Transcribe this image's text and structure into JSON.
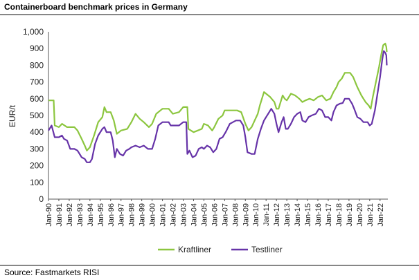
{
  "title": "Containerboard benchmark prices in Germany",
  "source": "Source: Fastmarkets RISI",
  "colors": {
    "kraftliner": "#8cc63f",
    "testliner": "#6633a8"
  },
  "chart_data": {
    "type": "line",
    "title": "Containerboard benchmark prices in Germany",
    "xlabel": "",
    "ylabel": "EUR/t",
    "ylim": [
      0,
      1000
    ],
    "yticks": [
      0,
      100,
      200,
      300,
      400,
      500,
      600,
      700,
      800,
      900,
      1000
    ],
    "ytick_labels": [
      "0",
      "100",
      "200",
      "300",
      "400",
      "500",
      "600",
      "700",
      "800",
      "900",
      "1,000"
    ],
    "xlim": [
      1990,
      2022.75
    ],
    "xtick_labels": [
      "Jan-90",
      "Jan-91",
      "Jan-92",
      "Jan-93",
      "Jan-94",
      "Jan-95",
      "Jan-96",
      "Jan-97",
      "Jan-98",
      "Jan-99",
      "Jan-00",
      "Jan-01",
      "Jan-02",
      "Jan-03",
      "Jan-04",
      "Jan-05",
      "Jan-06",
      "Jan-07",
      "Jan-08",
      "Jan-09",
      "Jan-10",
      "Jan-11",
      "Jan-12",
      "Jan-13",
      "Jan-14",
      "Jan-15",
      "Jan-16",
      "Jan-17",
      "Jan-18",
      "Jan-19",
      "Jan-20",
      "Jan-21",
      "Jan-22"
    ],
    "grid": false,
    "legend_position": "bottom-center",
    "series": [
      {
        "name": "Kraftliner",
        "points": [
          [
            1990,
            590
          ],
          [
            1990.5,
            590
          ],
          [
            1990.6,
            440
          ],
          [
            1991,
            430
          ],
          [
            1991.3,
            450
          ],
          [
            1991.8,
            430
          ],
          [
            1992.5,
            430
          ],
          [
            1992.8,
            410
          ],
          [
            1993.2,
            360
          ],
          [
            1993.5,
            320
          ],
          [
            1993.7,
            290
          ],
          [
            1994,
            310
          ],
          [
            1994.4,
            380
          ],
          [
            1994.8,
            460
          ],
          [
            1995.2,
            490
          ],
          [
            1995.4,
            550
          ],
          [
            1995.6,
            520
          ],
          [
            1996,
            520
          ],
          [
            1996.3,
            470
          ],
          [
            1996.6,
            390
          ],
          [
            1997,
            410
          ],
          [
            1997.6,
            420
          ],
          [
            1998,
            460
          ],
          [
            1998.4,
            510
          ],
          [
            1998.8,
            480
          ],
          [
            1999.2,
            460
          ],
          [
            1999.7,
            430
          ],
          [
            2000,
            450
          ],
          [
            2000.4,
            510
          ],
          [
            2001,
            540
          ],
          [
            2001.6,
            540
          ],
          [
            2002,
            510
          ],
          [
            2002.6,
            520
          ],
          [
            2003,
            550
          ],
          [
            2003.4,
            550
          ],
          [
            2003.5,
            420
          ],
          [
            2004,
            400
          ],
          [
            2004.4,
            410
          ],
          [
            2004.8,
            420
          ],
          [
            2005,
            450
          ],
          [
            2005.4,
            440
          ],
          [
            2005.8,
            410
          ],
          [
            2006,
            430
          ],
          [
            2006.4,
            480
          ],
          [
            2006.8,
            500
          ],
          [
            2007,
            530
          ],
          [
            2007.5,
            530
          ],
          [
            2008.2,
            530
          ],
          [
            2008.6,
            520
          ],
          [
            2009,
            450
          ],
          [
            2009.3,
            410
          ],
          [
            2009.6,
            430
          ],
          [
            2009.9,
            470
          ],
          [
            2010.2,
            510
          ],
          [
            2010.4,
            560
          ],
          [
            2010.6,
            600
          ],
          [
            2010.8,
            640
          ],
          [
            2011,
            630
          ],
          [
            2011.4,
            610
          ],
          [
            2011.8,
            580
          ],
          [
            2012,
            540
          ],
          [
            2012.2,
            540
          ],
          [
            2012.6,
            620
          ],
          [
            2012.8,
            600
          ],
          [
            2013,
            590
          ],
          [
            2013.4,
            630
          ],
          [
            2013.8,
            620
          ],
          [
            2014.2,
            600
          ],
          [
            2014.5,
            580
          ],
          [
            2014.8,
            590
          ],
          [
            2015.2,
            600
          ],
          [
            2015.6,
            590
          ],
          [
            2016,
            610
          ],
          [
            2016.4,
            620
          ],
          [
            2016.8,
            590
          ],
          [
            2017.2,
            600
          ],
          [
            2017.5,
            640
          ],
          [
            2017.8,
            670
          ],
          [
            2018,
            700
          ],
          [
            2018.3,
            720
          ],
          [
            2018.6,
            755
          ],
          [
            2019.1,
            755
          ],
          [
            2019.4,
            730
          ],
          [
            2019.8,
            670
          ],
          [
            2020.2,
            620
          ],
          [
            2020.6,
            580
          ],
          [
            2020.9,
            560
          ],
          [
            2021.1,
            540
          ],
          [
            2021.3,
            610
          ],
          [
            2021.6,
            700
          ],
          [
            2021.9,
            790
          ],
          [
            2022.1,
            860
          ],
          [
            2022.3,
            920
          ],
          [
            2022.5,
            930
          ],
          [
            2022.6,
            910
          ],
          [
            2022.65,
            880
          ]
        ]
      },
      {
        "name": "Testliner",
        "points": [
          [
            1990,
            410
          ],
          [
            1990.3,
            440
          ],
          [
            1990.6,
            370
          ],
          [
            1991,
            370
          ],
          [
            1991.3,
            380
          ],
          [
            1991.5,
            360
          ],
          [
            1991.8,
            350
          ],
          [
            1992.1,
            300
          ],
          [
            1992.5,
            300
          ],
          [
            1992.8,
            290
          ],
          [
            1993.2,
            250
          ],
          [
            1993.5,
            240
          ],
          [
            1993.7,
            220
          ],
          [
            1994,
            220
          ],
          [
            1994.2,
            240
          ],
          [
            1994.5,
            330
          ],
          [
            1994.8,
            380
          ],
          [
            1995.2,
            420
          ],
          [
            1995.4,
            430
          ],
          [
            1995.6,
            400
          ],
          [
            1996,
            400
          ],
          [
            1996.2,
            350
          ],
          [
            1996.4,
            250
          ],
          [
            1996.6,
            300
          ],
          [
            1996.9,
            270
          ],
          [
            1997.2,
            260
          ],
          [
            1997.5,
            290
          ],
          [
            1997.8,
            300
          ],
          [
            1998,
            310
          ],
          [
            1998.4,
            320
          ],
          [
            1998.8,
            310
          ],
          [
            1999.2,
            320
          ],
          [
            1999.6,
            300
          ],
          [
            2000,
            300
          ],
          [
            2000.3,
            360
          ],
          [
            2000.6,
            440
          ],
          [
            2001,
            460
          ],
          [
            2001.6,
            460
          ],
          [
            2001.8,
            440
          ],
          [
            2002.2,
            440
          ],
          [
            2002.6,
            440
          ],
          [
            2003,
            460
          ],
          [
            2003.3,
            460
          ],
          [
            2003.4,
            270
          ],
          [
            2003.6,
            290
          ],
          [
            2003.9,
            250
          ],
          [
            2004.2,
            260
          ],
          [
            2004.5,
            300
          ],
          [
            2004.8,
            310
          ],
          [
            2005,
            300
          ],
          [
            2005.3,
            320
          ],
          [
            2005.6,
            310
          ],
          [
            2005.9,
            280
          ],
          [
            2006.2,
            300
          ],
          [
            2006.5,
            360
          ],
          [
            2006.8,
            370
          ],
          [
            2007.1,
            400
          ],
          [
            2007.5,
            450
          ],
          [
            2007.8,
            460
          ],
          [
            2008.1,
            470
          ],
          [
            2008.5,
            470
          ],
          [
            2008.8,
            440
          ],
          [
            2009,
            370
          ],
          [
            2009.2,
            280
          ],
          [
            2009.6,
            270
          ],
          [
            2009.9,
            270
          ],
          [
            2010.2,
            360
          ],
          [
            2010.5,
            420
          ],
          [
            2010.8,
            470
          ],
          [
            2011,
            490
          ],
          [
            2011.3,
            520
          ],
          [
            2011.5,
            540
          ],
          [
            2011.8,
            510
          ],
          [
            2012,
            450
          ],
          [
            2012.2,
            400
          ],
          [
            2012.5,
            460
          ],
          [
            2012.7,
            490
          ],
          [
            2012.9,
            420
          ],
          [
            2013.1,
            420
          ],
          [
            2013.4,
            450
          ],
          [
            2013.7,
            490
          ],
          [
            2014,
            510
          ],
          [
            2014.3,
            520
          ],
          [
            2014.5,
            470
          ],
          [
            2014.8,
            460
          ],
          [
            2015.1,
            490
          ],
          [
            2015.4,
            500
          ],
          [
            2015.8,
            510
          ],
          [
            2016.1,
            540
          ],
          [
            2016.4,
            530
          ],
          [
            2016.7,
            490
          ],
          [
            2017,
            490
          ],
          [
            2017.3,
            470
          ],
          [
            2017.5,
            520
          ],
          [
            2017.8,
            560
          ],
          [
            2018.1,
            570
          ],
          [
            2018.4,
            575
          ],
          [
            2018.6,
            600
          ],
          [
            2019,
            600
          ],
          [
            2019.3,
            570
          ],
          [
            2019.5,
            540
          ],
          [
            2019.8,
            490
          ],
          [
            2020.1,
            480
          ],
          [
            2020.4,
            460
          ],
          [
            2020.8,
            460
          ],
          [
            2021,
            440
          ],
          [
            2021.2,
            450
          ],
          [
            2021.5,
            530
          ],
          [
            2021.8,
            650
          ],
          [
            2022,
            730
          ],
          [
            2022.2,
            830
          ],
          [
            2022.35,
            885
          ],
          [
            2022.5,
            875
          ],
          [
            2022.6,
            860
          ],
          [
            2022.65,
            800
          ]
        ]
      }
    ]
  }
}
